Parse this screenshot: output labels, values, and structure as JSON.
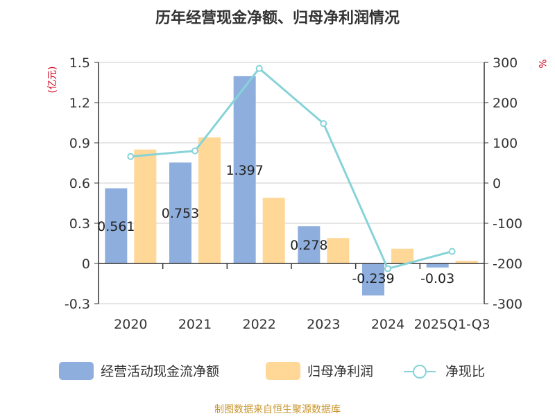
{
  "chart_data": {
    "type": "bar",
    "title": "历年经营现金净额、归母净利润情况",
    "categories": [
      "2020",
      "2021",
      "2022",
      "2023",
      "2024",
      "2025Q1-Q3"
    ],
    "series": [
      {
        "name": "经营活动现金流净额",
        "type": "bar",
        "axis": "left",
        "color": "#8eaedd",
        "values": [
          0.561,
          0.753,
          1.397,
          0.278,
          -0.239,
          -0.03
        ]
      },
      {
        "name": "归母净利润",
        "type": "bar",
        "axis": "left",
        "color": "#ffd796",
        "values": [
          0.85,
          0.94,
          0.49,
          0.19,
          0.11,
          0.02
        ]
      },
      {
        "name": "净现比",
        "type": "line",
        "axis": "right",
        "color": "#86d3d8",
        "values": [
          66,
          80,
          285,
          148,
          -213,
          -170
        ]
      }
    ],
    "data_labels": [
      "0.561",
      "0.753",
      "1.397",
      "0.278",
      "-0.239",
      "-0.03"
    ],
    "left_axis": {
      "unit": "(亿元)",
      "min": -0.3,
      "max": 1.5,
      "ticks": [
        1.5,
        1.2,
        0.9,
        0.6,
        0.3,
        0,
        -0.3
      ],
      "tick_labels": [
        "1.5",
        "1.2",
        "0.9",
        "0.6",
        "0.3",
        "0",
        "-0.3"
      ]
    },
    "right_axis": {
      "unit": "%",
      "min": -300,
      "max": 300,
      "ticks": [
        300,
        200,
        100,
        0,
        -100,
        -200,
        -300
      ],
      "tick_labels": [
        "300",
        "200",
        "100",
        "0",
        "-100",
        "-200",
        "-300"
      ]
    },
    "grid": true,
    "legend_position": "bottom"
  },
  "source_text": "制图数据来自恒生聚源数据库"
}
